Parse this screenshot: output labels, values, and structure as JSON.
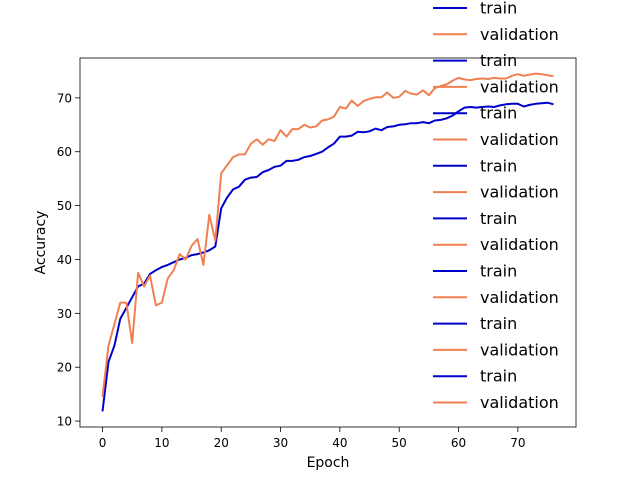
{
  "chart_data": {
    "type": "line",
    "title": "",
    "xlabel": "Epoch",
    "ylabel": "Accuracy",
    "xlim": [
      -3.8,
      79.8
    ],
    "ylim": [
      8.9,
      77.4
    ],
    "xticks": [
      0,
      10,
      20,
      30,
      40,
      50,
      60,
      70
    ],
    "yticks": [
      10,
      20,
      30,
      40,
      50,
      60,
      70
    ],
    "grid": false,
    "legend_position": "upper right, overflowing above the axes",
    "legend_entries": [
      "train",
      "validation",
      "train",
      "validation",
      "train",
      "validation",
      "train",
      "validation",
      "train",
      "validation",
      "train",
      "validation",
      "train",
      "validation",
      "train",
      "validation"
    ],
    "series": [
      {
        "name": "train",
        "color": "#0000cc",
        "x": [
          0,
          1,
          2,
          3,
          4,
          5,
          6,
          7,
          8,
          9,
          10,
          11,
          12,
          13,
          14,
          15,
          16,
          17,
          18,
          19,
          20,
          21,
          22,
          23,
          24,
          25,
          26,
          27,
          28,
          29,
          30,
          31,
          32,
          33,
          34,
          35,
          36,
          37,
          38,
          39,
          40,
          41,
          42,
          43,
          44,
          45,
          46,
          47,
          48,
          49,
          50,
          51,
          52,
          53,
          54,
          55,
          56,
          57,
          58,
          59,
          60,
          61,
          62,
          63,
          64,
          65,
          66,
          67,
          68,
          69,
          70,
          71,
          72,
          73,
          74,
          75,
          76
        ],
        "y": [
          11.8,
          21,
          24,
          29,
          31,
          33,
          35,
          35.5,
          37.3,
          38,
          38.6,
          39,
          39.5,
          40,
          40.3,
          40.8,
          41,
          41.3,
          41.7,
          42.4,
          49.5,
          51.5,
          53,
          53.5,
          54.8,
          55.2,
          55.3,
          56.2,
          56.6,
          57.2,
          57.4,
          58.3,
          58.3,
          58.5,
          59,
          59.2,
          59.6,
          60,
          60.8,
          61.5,
          62.8,
          62.8,
          63,
          63.7,
          63.6,
          63.8,
          64.3,
          64,
          64.6,
          64.7,
          65,
          65.1,
          65.3,
          65.3,
          65.5,
          65.3,
          65.8,
          65.9,
          66.2,
          66.7,
          67.5,
          68.2,
          68.3,
          68.2,
          68.3,
          68.4,
          68.3,
          68.6,
          68.8,
          68.9,
          68.9,
          68.4,
          68.7,
          68.9,
          69,
          69.1,
          68.8
        ]
      },
      {
        "name": "validation",
        "color": "#f08050",
        "x": [
          0,
          1,
          2,
          3,
          4,
          5,
          6,
          7,
          8,
          9,
          10,
          11,
          12,
          13,
          14,
          15,
          16,
          17,
          18,
          19,
          20,
          21,
          22,
          23,
          24,
          25,
          26,
          27,
          28,
          29,
          30,
          31,
          32,
          33,
          34,
          35,
          36,
          37,
          38,
          39,
          40,
          41,
          42,
          43,
          44,
          45,
          46,
          47,
          48,
          49,
          50,
          51,
          52,
          53,
          54,
          55,
          56,
          57,
          58,
          59,
          60,
          61,
          62,
          63,
          64,
          65,
          66,
          67,
          68,
          69,
          70,
          71,
          72,
          73,
          74,
          75,
          76
        ],
        "y": [
          14.5,
          24,
          28,
          32,
          32,
          24.5,
          37.5,
          35,
          37,
          31.5,
          32,
          36.5,
          38,
          41,
          40,
          42.5,
          43.8,
          39,
          48.3,
          43.5,
          56,
          57.5,
          59,
          59.5,
          59.5,
          61.5,
          62.3,
          61.3,
          62.3,
          62,
          64,
          62.8,
          64.2,
          64.2,
          65,
          64.5,
          64.7,
          65.8,
          66,
          66.5,
          68.3,
          68,
          69.5,
          68.5,
          69.4,
          69.8,
          70.1,
          70.1,
          71,
          70,
          70.2,
          71.3,
          70.8,
          70.6,
          71.4,
          70.5,
          71.8,
          72.2,
          72.5,
          73.2,
          73.7,
          73.4,
          73.3,
          73.5,
          73.6,
          73.5,
          73.7,
          73.6,
          73.6,
          74.1,
          74.4,
          74.1,
          74.3,
          74.5,
          74.4,
          74.2,
          74
        ]
      }
    ]
  }
}
